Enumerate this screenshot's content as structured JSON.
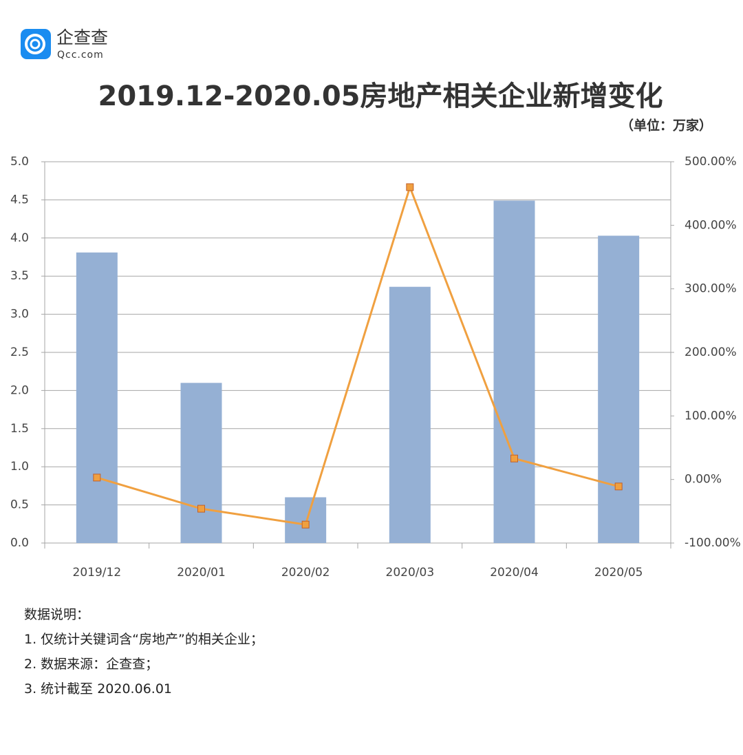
{
  "brand": {
    "name": "企查查",
    "domain": "Qcc.com"
  },
  "chart_data": {
    "type": "bar-line",
    "title": "2019.12-2020.05房地产相关企业新增变化",
    "subtitle": "（单位：万家）",
    "categories": [
      "2019/12",
      "2020/01",
      "2020/02",
      "2020/03",
      "2020/04",
      "2020/05"
    ],
    "series": [
      {
        "type": "bar",
        "color": "#95b0d4",
        "values": [
          3.81,
          2.1,
          0.6,
          3.36,
          4.49,
          4.03
        ]
      },
      {
        "type": "line",
        "axis": "y2",
        "color": "#f0a040",
        "values": [
          3,
          -46,
          -71,
          460,
          33,
          -11
        ]
      }
    ],
    "ylim": [
      0,
      5
    ],
    "yticks": [
      {
        "value": 0,
        "label": "0.0"
      },
      0.5,
      {
        "value": 1,
        "label": "1.0"
      },
      1.5,
      {
        "value": 2,
        "label": "2.0"
      },
      2.5,
      {
        "value": 3,
        "label": "3.0"
      },
      3.5,
      {
        "value": 4,
        "label": "4.0"
      },
      4.5,
      {
        "value": 5,
        "label": "5.0"
      }
    ],
    "y2lim": [
      -100,
      500
    ],
    "y2ticks": [
      {
        "value": -100,
        "label": "-100.00%"
      },
      {
        "value": 0,
        "label": "0.00%"
      },
      {
        "value": 100,
        "label": "100.00%"
      },
      {
        "value": 200,
        "label": "200.00%"
      },
      {
        "value": 300,
        "label": "300.00%"
      },
      {
        "value": 400,
        "label": "400.00%"
      },
      {
        "value": 500,
        "label": "500.00%"
      }
    ],
    "grid": true,
    "notes": [
      "数据说明：",
      "1. 仅统计关键词含“房地产”的相关企业；",
      "2. 数据来源：企查查；",
      "3. 统计截至 2020.06.01"
    ]
  }
}
